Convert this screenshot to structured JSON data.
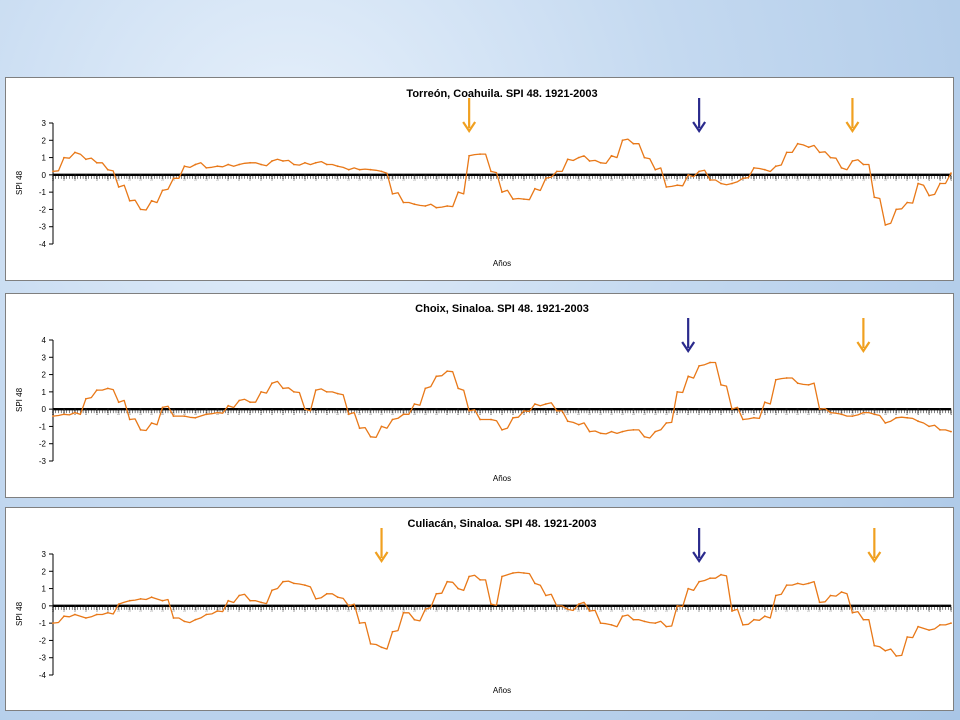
{
  "colors": {
    "series": "#e87818",
    "arrow_drought": "#f0a020",
    "arrow_wet": "#2a2a8c",
    "zero_line": "#000000"
  },
  "chart_data": [
    {
      "type": "line",
      "title": "Torreón, Coahuila. SPI 48. 1921-2003",
      "xlabel": "Años",
      "ylabel": "SPI 48",
      "xlim": [
        1921,
        2003
      ],
      "ylim": [
        -4,
        3
      ],
      "yticks": [
        3,
        2,
        1,
        0,
        -1,
        -2,
        -3,
        -4
      ],
      "grid": false,
      "series": [
        {
          "x": [
            1921,
            1922,
            1923,
            1924,
            1925,
            1926,
            1927,
            1928,
            1929,
            1930,
            1931,
            1932,
            1933,
            1934,
            1935,
            1936,
            1937,
            1938,
            1939,
            1940,
            1941,
            1942,
            1943,
            1944,
            1945,
            1946,
            1947,
            1948,
            1949,
            1950,
            1951,
            1952,
            1953,
            1954,
            1955,
            1956,
            1957,
            1958,
            1959,
            1960,
            1961,
            1962,
            1963,
            1964,
            1965,
            1966,
            1967,
            1968,
            1969,
            1970,
            1971,
            1972,
            1973,
            1974,
            1975,
            1976,
            1977,
            1978,
            1979,
            1980,
            1981,
            1982,
            1983,
            1984,
            1985,
            1986,
            1987,
            1988,
            1989,
            1990,
            1991,
            1992,
            1993,
            1994,
            1995,
            1996,
            1997,
            1998,
            1999,
            2000,
            2001,
            2002,
            2003
          ],
          "values": [
            0.2,
            1.0,
            1.3,
            0.9,
            0.7,
            0.3,
            -0.7,
            -1.5,
            -2.0,
            -1.5,
            -0.9,
            -0.2,
            0.5,
            0.6,
            0.4,
            0.5,
            0.6,
            0.6,
            0.7,
            0.6,
            0.8,
            0.8,
            0.6,
            0.7,
            0.7,
            0.6,
            0.5,
            0.3,
            0.3,
            0.3,
            0.2,
            -1.1,
            -1.6,
            -1.7,
            -1.8,
            -1.9,
            -1.8,
            -1.0,
            1.1,
            1.2,
            0.2,
            -1.0,
            -1.4,
            -1.4,
            -0.8,
            -0.2,
            0.2,
            0.9,
            1.0,
            0.8,
            0.7,
            1.1,
            2.0,
            1.8,
            1.0,
            0.3,
            -0.7,
            -0.6,
            0.0,
            0.2,
            -0.3,
            -0.5,
            -0.5,
            -0.2,
            0.4,
            0.3,
            0.5,
            1.3,
            1.8,
            1.6,
            1.3,
            1.0,
            0.4,
            0.8,
            0.6,
            -1.3,
            -2.9,
            -2.0,
            -1.6,
            -0.5,
            -1.2,
            -0.5,
            0.1
          ]
        }
      ],
      "arrows": [
        {
          "year": 1959,
          "color": "orange"
        },
        {
          "year": 1980,
          "color": "blue"
        },
        {
          "year": 1994,
          "color": "orange"
        }
      ]
    },
    {
      "type": "line",
      "title": "Choix, Sinaloa. SPI 48. 1921-2003",
      "xlabel": "Años",
      "ylabel": "SPI 48",
      "xlim": [
        1921,
        2003
      ],
      "ylim": [
        -3,
        4
      ],
      "yticks": [
        4,
        3,
        2,
        1,
        0,
        -1,
        -2,
        -3
      ],
      "grid": false,
      "series": [
        {
          "x": [
            1921,
            1922,
            1923,
            1924,
            1925,
            1926,
            1927,
            1928,
            1929,
            1930,
            1931,
            1932,
            1933,
            1934,
            1935,
            1936,
            1937,
            1938,
            1939,
            1940,
            1941,
            1942,
            1943,
            1944,
            1945,
            1946,
            1947,
            1948,
            1949,
            1950,
            1951,
            1952,
            1953,
            1954,
            1955,
            1956,
            1957,
            1958,
            1959,
            1960,
            1961,
            1962,
            1963,
            1964,
            1965,
            1966,
            1967,
            1968,
            1969,
            1970,
            1971,
            1972,
            1973,
            1974,
            1975,
            1976,
            1977,
            1978,
            1979,
            1980,
            1981,
            1982,
            1983,
            1984,
            1985,
            1986,
            1987,
            1988,
            1989,
            1990,
            1991,
            1992,
            1993,
            1994,
            1995,
            1996,
            1997,
            1998,
            1999,
            2000,
            2001,
            2002,
            2003
          ],
          "values": [
            -0.4,
            -0.3,
            -0.2,
            0.6,
            1.1,
            1.2,
            0.4,
            -0.6,
            -1.2,
            -0.8,
            0.1,
            -0.4,
            -0.4,
            -0.5,
            -0.3,
            -0.2,
            0.2,
            0.5,
            0.4,
            1.0,
            1.5,
            1.2,
            1.0,
            0.0,
            1.1,
            1.0,
            0.9,
            -0.3,
            -1.1,
            -1.6,
            -1.0,
            -0.6,
            -0.3,
            0.3,
            1.2,
            1.9,
            2.2,
            1.2,
            -0.1,
            -0.6,
            -0.6,
            -1.2,
            -0.5,
            -0.1,
            0.3,
            0.3,
            -0.1,
            -0.7,
            -0.9,
            -1.3,
            -1.4,
            -1.3,
            -1.3,
            -1.2,
            -1.6,
            -1.3,
            -0.8,
            1.0,
            1.9,
            2.5,
            2.7,
            1.4,
            0.0,
            -0.6,
            -0.5,
            0.4,
            1.7,
            1.8,
            1.5,
            1.4,
            0.0,
            -0.2,
            -0.3,
            -0.4,
            -0.2,
            -0.3,
            -0.8,
            -0.5,
            -0.5,
            -0.7,
            -1.0,
            -1.2,
            -1.3
          ]
        }
      ],
      "arrows": [
        {
          "year": 1979,
          "color": "blue"
        },
        {
          "year": 1995,
          "color": "orange"
        }
      ]
    },
    {
      "type": "line",
      "title": "Culiacán, Sinaloa. SPI 48. 1921-2003",
      "xlabel": "Años",
      "ylabel": "SPI 48",
      "xlim": [
        1921,
        2003
      ],
      "ylim": [
        -4,
        3
      ],
      "yticks": [
        3,
        2,
        1,
        0,
        -1,
        -2,
        -3,
        -4
      ],
      "grid": false,
      "series": [
        {
          "x": [
            1921,
            1922,
            1923,
            1924,
            1925,
            1926,
            1927,
            1928,
            1929,
            1930,
            1931,
            1932,
            1933,
            1934,
            1935,
            1936,
            1937,
            1938,
            1939,
            1940,
            1941,
            1942,
            1943,
            1944,
            1945,
            1946,
            1947,
            1948,
            1949,
            1950,
            1951,
            1952,
            1953,
            1954,
            1955,
            1956,
            1957,
            1958,
            1959,
            1960,
            1961,
            1962,
            1963,
            1964,
            1965,
            1966,
            1967,
            1968,
            1969,
            1970,
            1971,
            1972,
            1973,
            1974,
            1975,
            1976,
            1977,
            1978,
            1979,
            1980,
            1981,
            1982,
            1983,
            1984,
            1985,
            1986,
            1987,
            1988,
            1989,
            1990,
            1991,
            1992,
            1993,
            1994,
            1995,
            1996,
            1997,
            1998,
            1999,
            2000,
            2001,
            2002,
            2003
          ],
          "values": [
            -1.0,
            -0.6,
            -0.5,
            -0.7,
            -0.5,
            -0.4,
            0.1,
            0.3,
            0.4,
            0.5,
            0.3,
            -0.7,
            -0.9,
            -0.8,
            -0.5,
            -0.3,
            0.3,
            0.6,
            0.3,
            0.2,
            0.9,
            1.4,
            1.3,
            1.2,
            0.4,
            0.7,
            0.5,
            0.0,
            -1.0,
            -2.2,
            -2.4,
            -1.5,
            -0.4,
            -0.8,
            -0.2,
            0.7,
            1.4,
            1.0,
            1.7,
            1.5,
            0.1,
            1.7,
            1.9,
            1.9,
            1.3,
            0.6,
            0.0,
            -0.2,
            0.1,
            -0.3,
            -1.0,
            -1.1,
            -0.6,
            -0.8,
            -0.9,
            -1.0,
            -1.2,
            0.0,
            1.0,
            1.4,
            1.6,
            1.8,
            -0.3,
            -1.1,
            -0.8,
            -0.6,
            0.6,
            1.2,
            1.3,
            1.3,
            0.2,
            0.6,
            0.8,
            -0.4,
            -0.8,
            -2.3,
            -2.6,
            -2.9,
            -1.8,
            -1.2,
            -1.4,
            -1.1,
            -1.0
          ]
        }
      ],
      "arrows": [
        {
          "year": 1951,
          "color": "orange"
        },
        {
          "year": 1980,
          "color": "blue"
        },
        {
          "year": 1996,
          "color": "orange"
        }
      ]
    }
  ]
}
